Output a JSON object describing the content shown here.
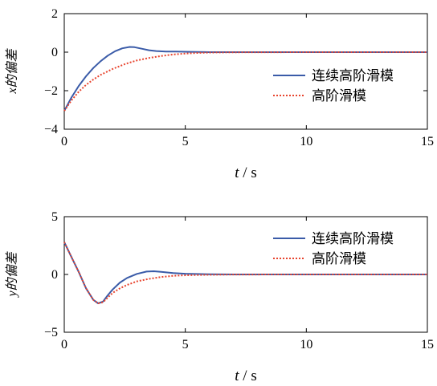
{
  "chart_data": [
    {
      "type": "line",
      "ylabel": "x的偏差",
      "xlabel_var": "t",
      "xlabel_unit": "/ s",
      "xlim": [
        0,
        15
      ],
      "ylim": [
        -4,
        2
      ],
      "xticks": [
        "0",
        "5",
        "10",
        "15"
      ],
      "yticks": [
        "2",
        "0",
        "−2",
        "−4"
      ],
      "ytick_values": [
        2,
        0,
        -2,
        -4
      ],
      "legend_position": "center-right",
      "series": [
        {
          "name": "连续高阶滑模",
          "color": "#3a5ba8",
          "style": "solid",
          "x": [
            0,
            0.3,
            0.6,
            0.9,
            1.2,
            1.5,
            1.8,
            2.1,
            2.4,
            2.7,
            2.9,
            3.2,
            3.5,
            3.8,
            4.2,
            4.6,
            5.0,
            5.5,
            6.0,
            7.0,
            10.0,
            15.0
          ],
          "y": [
            -3.05,
            -2.35,
            -1.75,
            -1.25,
            -0.82,
            -0.47,
            -0.18,
            0.05,
            0.2,
            0.27,
            0.26,
            0.18,
            0.1,
            0.06,
            0.03,
            0.03,
            0.02,
            0.01,
            0.0,
            0.0,
            0.0,
            0.0
          ]
        },
        {
          "name": "高阶滑模",
          "color": "#e8442e",
          "style": "dotted",
          "x": [
            0,
            0.3,
            0.6,
            0.9,
            1.2,
            1.5,
            2.0,
            2.5,
            3.0,
            3.5,
            4.0,
            4.5,
            5.0,
            5.5,
            6.0,
            7.0,
            10.0,
            15.0
          ],
          "y": [
            -3.05,
            -2.5,
            -2.05,
            -1.7,
            -1.42,
            -1.18,
            -0.87,
            -0.62,
            -0.43,
            -0.3,
            -0.2,
            -0.12,
            -0.07,
            -0.04,
            -0.02,
            -0.01,
            0.0,
            0.0
          ]
        }
      ]
    },
    {
      "type": "line",
      "ylabel": "y的偏差",
      "xlabel_var": "t",
      "xlabel_unit": "/ s",
      "xlim": [
        0,
        15
      ],
      "ylim": [
        -5,
        5
      ],
      "xticks": [
        "0",
        "5",
        "10",
        "15"
      ],
      "yticks": [
        "5",
        "0",
        "−5"
      ],
      "ytick_values": [
        5,
        0,
        -5
      ],
      "legend_position": "top-right",
      "series": [
        {
          "name": "连续高阶滑模",
          "color": "#3a5ba8",
          "style": "solid",
          "x": [
            0,
            0.3,
            0.6,
            0.9,
            1.2,
            1.4,
            1.6,
            1.8,
            2.0,
            2.3,
            2.6,
            3.0,
            3.4,
            3.7,
            4.0,
            4.5,
            5.0,
            6.0,
            7.0,
            10.0,
            15.0
          ],
          "y": [
            2.8,
            1.5,
            0.2,
            -1.2,
            -2.2,
            -2.5,
            -2.35,
            -1.8,
            -1.3,
            -0.7,
            -0.3,
            0.05,
            0.25,
            0.28,
            0.22,
            0.12,
            0.06,
            0.02,
            0.0,
            0.0,
            0.0
          ]
        },
        {
          "name": "高阶滑模",
          "color": "#e8442e",
          "style": "dotted",
          "x": [
            0,
            0.3,
            0.6,
            0.9,
            1.2,
            1.4,
            1.6,
            1.8,
            2.0,
            2.3,
            2.6,
            3.0,
            3.5,
            4.0,
            4.5,
            5.0,
            6.0,
            7.0,
            10.0,
            15.0
          ],
          "y": [
            2.8,
            1.5,
            0.2,
            -1.2,
            -2.2,
            -2.5,
            -2.4,
            -2.0,
            -1.6,
            -1.2,
            -0.9,
            -0.6,
            -0.38,
            -0.22,
            -0.12,
            -0.07,
            -0.03,
            -0.01,
            0.0,
            0.0
          ]
        }
      ]
    }
  ]
}
